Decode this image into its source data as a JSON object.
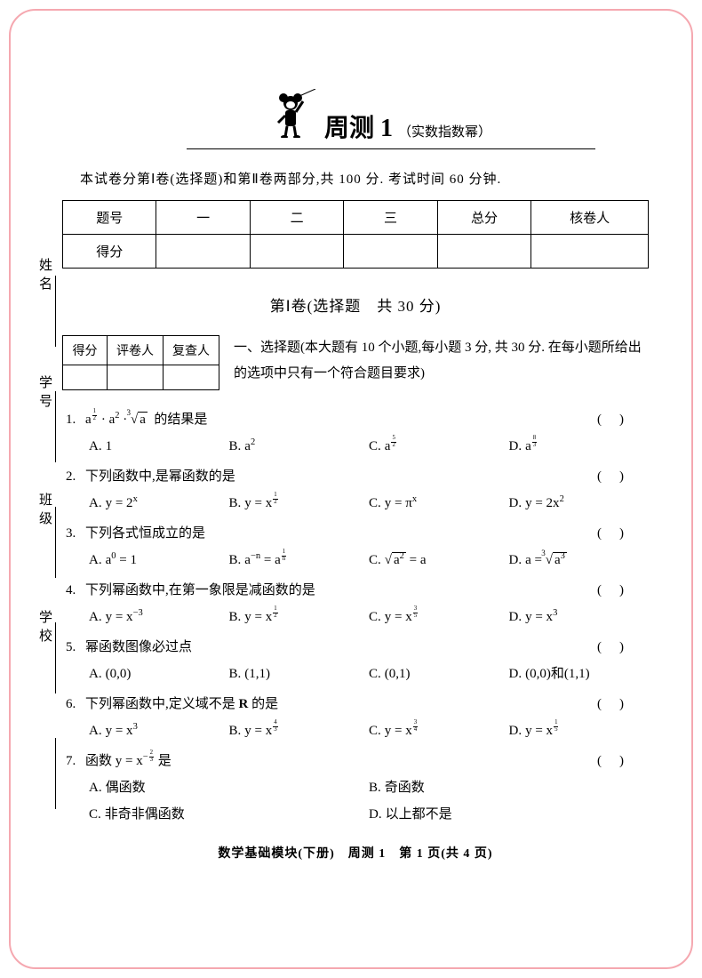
{
  "colors": {
    "border": "#f5a8b0",
    "text": "#000000",
    "bg": "#ffffff"
  },
  "sideLabels": [
    "姓名",
    "学号",
    "班级",
    "学校"
  ],
  "title": {
    "main": "周测 1",
    "sub": "（实数指数幂）"
  },
  "intro": "本试卷分第Ⅰ卷(选择题)和第Ⅱ卷两部分,共 100 分. 考试时间 60 分钟.",
  "scoreMain": {
    "headers": [
      "题号",
      "一",
      "二",
      "三",
      "总分",
      "核卷人"
    ],
    "rowLabel": "得分"
  },
  "sectionTitle": "第Ⅰ卷(选择题　共 30 分)",
  "scoreSmall": {
    "headers": [
      "得分",
      "评卷人",
      "复查人"
    ]
  },
  "instruction": "一、选择题(本大题有 10 个小题,每小题 3 分, 共 30 分. 在每小题所给出的选项中只有一个符合题目要求)",
  "questions": [
    {
      "num": "1.",
      "stem_html": "a<sup><span class='frac'><span class='n'>1</span><span class='d'>2</span></span></sup> · a<sup>2</sup> · <span class='root small-idx' data-idx='3'>√<span class='radicand'>a</span></span>&nbsp; 的结果是",
      "paren": true,
      "options": [
        {
          "l": "A.",
          "html": "1"
        },
        {
          "l": "B.",
          "html": "a<sup>2</sup>"
        },
        {
          "l": "C.",
          "html": "a<sup><span class='frac'><span class='n'>5</span><span class='d'>2</span></span></sup>"
        },
        {
          "l": "D.",
          "html": "a<sup><span class='frac'><span class='n'>8</span><span class='d'>3</span></span></sup>"
        }
      ],
      "layout": "four"
    },
    {
      "num": "2.",
      "stem_html": "下列函数中,是幂函数的是",
      "paren": true,
      "options": [
        {
          "l": "A.",
          "html": "y = 2<sup>x</sup>"
        },
        {
          "l": "B.",
          "html": "y = x<sup><span class='frac'><span class='n'>1</span><span class='d'>2</span></span></sup>"
        },
        {
          "l": "C.",
          "html": "y = π<sup>x</sup>"
        },
        {
          "l": "D.",
          "html": "y = 2x<sup>2</sup>"
        }
      ],
      "layout": "four"
    },
    {
      "num": "3.",
      "stem_html": "下列各式恒成立的是",
      "paren": true,
      "options": [
        {
          "l": "A.",
          "html": "a<sup>0</sup> = 1"
        },
        {
          "l": "B.",
          "html": "a<sup>−n</sup> = a<sup><span class='frac'><span class='n'>1</span><span class='d'>n</span></span></sup>"
        },
        {
          "l": "C.",
          "html": "<span class='root'>√<span class='radicand'>a<sup>2</sup></span></span> = a"
        },
        {
          "l": "D.",
          "html": "a = <span class='root small-idx' data-idx='3'>√<span class='radicand'>a<sup>3</sup></span></span>"
        }
      ],
      "layout": "four"
    },
    {
      "num": "4.",
      "stem_html": "下列幂函数中,在第一象限是减函数的是",
      "paren": true,
      "options": [
        {
          "l": "A.",
          "html": "y = x<sup>−3</sup>"
        },
        {
          "l": "B.",
          "html": "y = x<sup><span class='frac'><span class='n'>1</span><span class='d'>2</span></span></sup>"
        },
        {
          "l": "C.",
          "html": "y = x<sup><span class='frac'><span class='n'>3</span><span class='d'>5</span></span></sup>"
        },
        {
          "l": "D.",
          "html": "y = x<sup>3</sup>"
        }
      ],
      "layout": "four"
    },
    {
      "num": "5.",
      "stem_html": "幂函数图像必过点",
      "paren": true,
      "options": [
        {
          "l": "A.",
          "html": "(0,0)"
        },
        {
          "l": "B.",
          "html": "(1,1)"
        },
        {
          "l": "C.",
          "html": "(0,1)"
        },
        {
          "l": "D.",
          "html": "(0,0)和(1,1)"
        }
      ],
      "layout": "four"
    },
    {
      "num": "6.",
      "stem_html": "下列幂函数中,定义域不是 <b>R</b> 的是",
      "paren": true,
      "options": [
        {
          "l": "A.",
          "html": "y = x<sup>3</sup>"
        },
        {
          "l": "B.",
          "html": "y = x<sup><span class='frac'><span class='n'>4</span><span class='d'>3</span></span></sup>"
        },
        {
          "l": "C.",
          "html": "y = x<sup><span class='frac'><span class='n'>3</span><span class='d'>4</span></span></sup>"
        },
        {
          "l": "D.",
          "html": "y = x<sup><span class='frac'><span class='n'>1</span><span class='d'>5</span></span></sup>"
        }
      ],
      "layout": "four"
    },
    {
      "num": "7.",
      "stem_html": "函数 y = x<sup>−<span class='frac'><span class='n'>2</span><span class='d'>3</span></span></sup> 是",
      "paren": true,
      "options": [
        {
          "l": "A.",
          "html": "偶函数"
        },
        {
          "l": "B.",
          "html": "奇函数"
        },
        {
          "l": "C.",
          "html": "非奇非偶函数"
        },
        {
          "l": "D.",
          "html": "以上都不是"
        }
      ],
      "layout": "two"
    }
  ],
  "footer": "数学基础模块(下册)　周测 1　第 1 页(共 4 页)"
}
